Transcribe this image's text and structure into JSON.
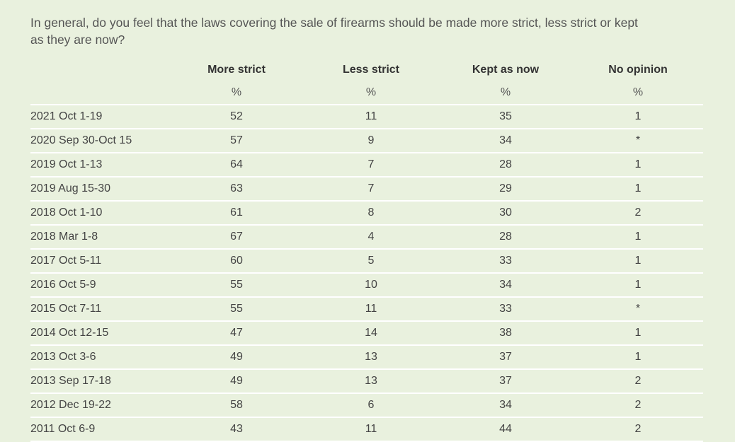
{
  "question": "In general, do you feel that the laws covering the sale of firearms should be made more strict, less strict or kept as they are now?",
  "chart_data": {
    "type": "table",
    "columns": [
      "More strict",
      "Less strict",
      "Kept as now",
      "No opinion"
    ],
    "units": [
      "%",
      "%",
      "%",
      "%"
    ],
    "rows": [
      {
        "date": "2021 Oct 1-19",
        "values": [
          "52",
          "11",
          "35",
          "1"
        ]
      },
      {
        "date": "2020 Sep 30-Oct 15",
        "values": [
          "57",
          "9",
          "34",
          "*"
        ]
      },
      {
        "date": "2019 Oct 1-13",
        "values": [
          "64",
          "7",
          "28",
          "1"
        ]
      },
      {
        "date": "2019 Aug 15-30",
        "values": [
          "63",
          "7",
          "29",
          "1"
        ]
      },
      {
        "date": "2018 Oct 1-10",
        "values": [
          "61",
          "8",
          "30",
          "2"
        ]
      },
      {
        "date": "2018 Mar 1-8",
        "values": [
          "67",
          "4",
          "28",
          "1"
        ]
      },
      {
        "date": "2017 Oct 5-11",
        "values": [
          "60",
          "5",
          "33",
          "1"
        ]
      },
      {
        "date": "2016 Oct 5-9",
        "values": [
          "55",
          "10",
          "34",
          "1"
        ]
      },
      {
        "date": "2015 Oct 7-11",
        "values": [
          "55",
          "11",
          "33",
          "*"
        ]
      },
      {
        "date": "2014 Oct 12-15",
        "values": [
          "47",
          "14",
          "38",
          "1"
        ]
      },
      {
        "date": "2013 Oct 3-6",
        "values": [
          "49",
          "13",
          "37",
          "1"
        ]
      },
      {
        "date": "2013 Sep 17-18",
        "values": [
          "49",
          "13",
          "37",
          "2"
        ]
      },
      {
        "date": "2012 Dec 19-22",
        "values": [
          "58",
          "6",
          "34",
          "2"
        ]
      },
      {
        "date": "2011 Oct 6-9",
        "values": [
          "43",
          "11",
          "44",
          "2"
        ]
      }
    ]
  }
}
